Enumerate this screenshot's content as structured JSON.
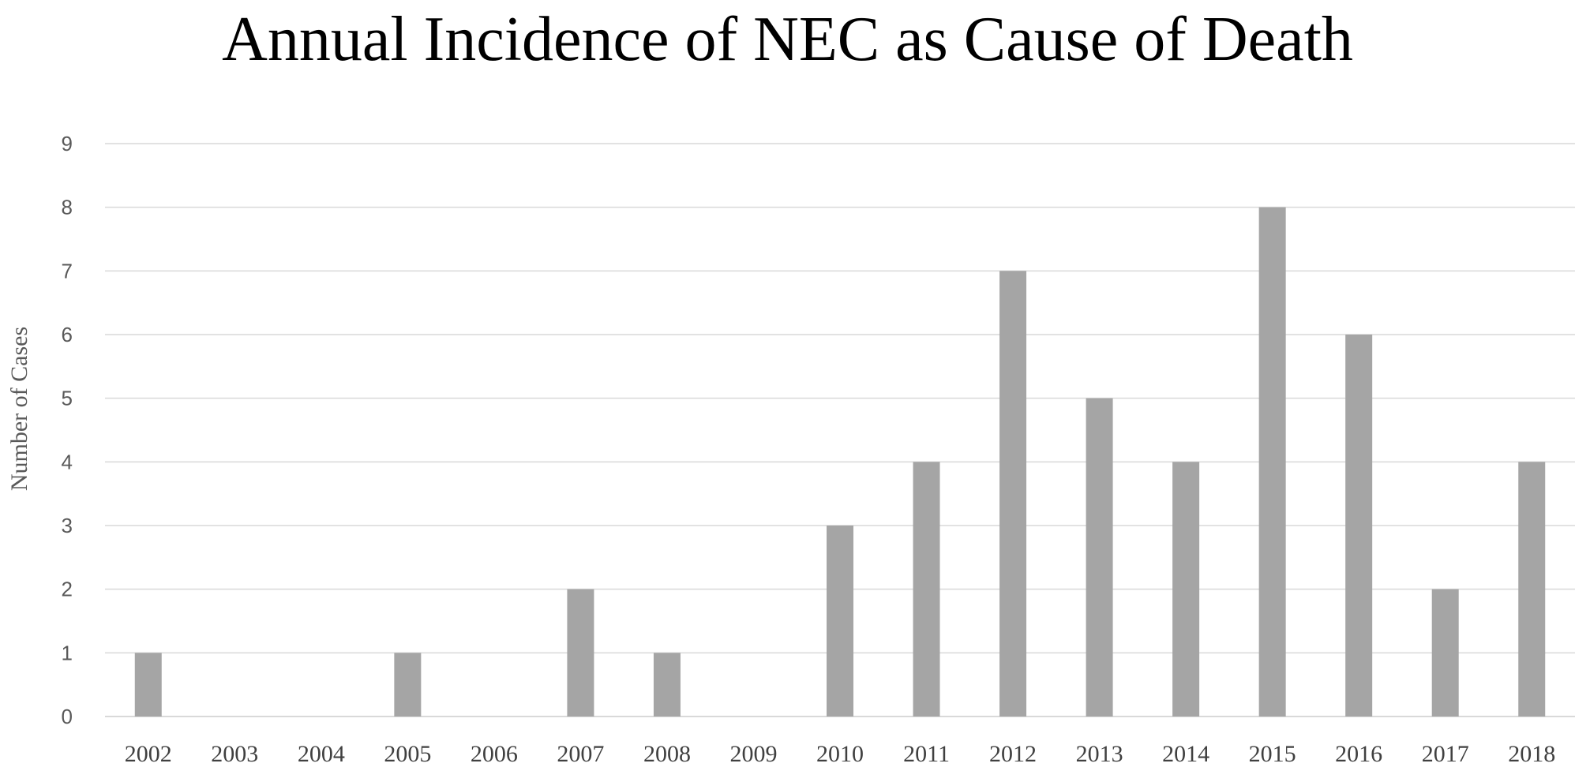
{
  "chart_data": {
    "type": "bar",
    "title": "Annual Incidence of NEC as Cause of Death",
    "xlabel": "",
    "ylabel": "Number of Cases",
    "categories": [
      "2002",
      "2003",
      "2004",
      "2005",
      "2006",
      "2007",
      "2008",
      "2009",
      "2010",
      "2011",
      "2012",
      "2013",
      "2014",
      "2015",
      "2016",
      "2017",
      "2018"
    ],
    "values": [
      1,
      0,
      0,
      1,
      0,
      2,
      1,
      0,
      3,
      4,
      7,
      5,
      4,
      8,
      6,
      2,
      4
    ],
    "ylim": [
      0,
      9
    ],
    "yticks": [
      0,
      1,
      2,
      3,
      4,
      5,
      6,
      7,
      8,
      9
    ],
    "grid": true,
    "legend": "none",
    "colors": {
      "bar": "#a5a5a5",
      "grid": "#d9d9d9"
    }
  }
}
